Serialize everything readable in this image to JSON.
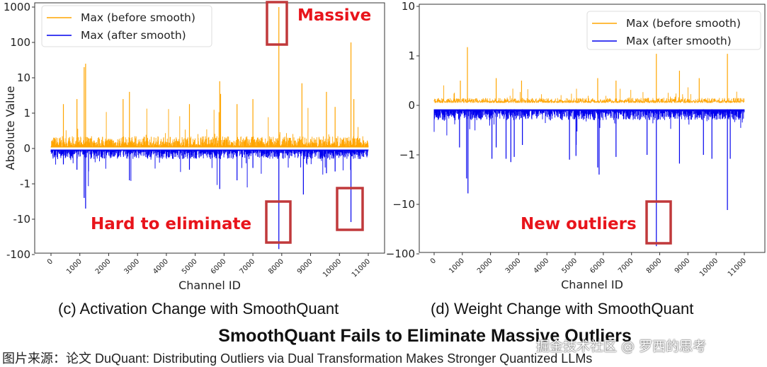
{
  "chart_data": [
    {
      "type": "line",
      "panel": "c",
      "caption": "(c) Activation Change with SmoothQuant",
      "xlabel": "Channel ID",
      "ylabel": "Absolute Value",
      "xlim": [
        0,
        11000
      ],
      "x_ticks": [
        "0",
        "1000",
        "2000",
        "3000",
        "4000",
        "5000",
        "6000",
        "7000",
        "8000",
        "9000",
        "10000",
        "11000"
      ],
      "y_scale": "symlog",
      "y_ticks": [
        "1000",
        "100",
        "10",
        "1",
        "0",
        "-1",
        "-10",
        "-100"
      ],
      "y_tick_values": [
        1000,
        100,
        10,
        1,
        0,
        -1,
        -10,
        -100
      ],
      "ylim": [
        -100,
        1000
      ],
      "legend_position": "top-left",
      "series": [
        {
          "name": "Max (before smooth)",
          "color": "#ffa500",
          "direction": "positive",
          "baseline_range": [
            0.05,
            0.35
          ],
          "peaks": [
            [
              1150,
              20
            ],
            [
              1200,
              25
            ],
            [
              430,
              1.8
            ],
            [
              900,
              2.5
            ],
            [
              2720,
              4
            ],
            [
              2500,
              2.5
            ],
            [
              4800,
              1.8
            ],
            [
              5850,
              8
            ],
            [
              5880,
              3.5
            ],
            [
              6450,
              1.8
            ],
            [
              7000,
              2.5
            ],
            [
              7900,
              1000
            ],
            [
              8700,
              7
            ],
            [
              9550,
              4
            ],
            [
              9850,
              1.5
            ],
            [
              10400,
              100
            ],
            [
              10500,
              2.5
            ]
          ]
        },
        {
          "name": "Max (after smooth)",
          "color": "#0000ee",
          "direction": "negative",
          "baseline_range": [
            0.05,
            0.3
          ],
          "peaks": [
            [
              1150,
              -2.5
            ],
            [
              1200,
              -5
            ],
            [
              900,
              -0.6
            ],
            [
              430,
              -0.45
            ],
            [
              2720,
              -0.9
            ],
            [
              4800,
              -0.6
            ],
            [
              5850,
              -1.4
            ],
            [
              6450,
              -0.9
            ],
            [
              7000,
              -0.55
            ],
            [
              7900,
              -70
            ],
            [
              8750,
              -2
            ],
            [
              9550,
              -0.7
            ],
            [
              9850,
              -0.65
            ],
            [
              10400,
              -12
            ]
          ]
        }
      ],
      "annotations": [
        {
          "text": "Massive",
          "target_channel": 7900
        },
        {
          "text": "Hard to eliminate",
          "target_channels": [
            7900,
            10400
          ]
        }
      ]
    },
    {
      "type": "line",
      "panel": "d",
      "caption": "(d) Weight Change with SmoothQuant",
      "xlabel": "Channel ID",
      "xlim": [
        0,
        11000
      ],
      "x_ticks": [
        "0",
        "1000",
        "2000",
        "3000",
        "4000",
        "5000",
        "6000",
        "7000",
        "8000",
        "9000",
        "10000",
        "11000"
      ],
      "y_scale": "symlog",
      "y_ticks": [
        "10",
        "1",
        "0",
        "−1",
        "−10",
        "−100"
      ],
      "y_tick_values": [
        10,
        1,
        0,
        -1,
        -10,
        -100
      ],
      "ylim": [
        -100,
        10
      ],
      "legend_position": "top-right",
      "series": [
        {
          "name": "Max (before smooth)",
          "color": "#ffa500",
          "direction": "positive",
          "baseline_range": [
            0.05,
            0.15
          ],
          "peaks": [
            [
              1180,
              1.5
            ],
            [
              930,
              0.5
            ],
            [
              2200,
              0.55
            ],
            [
              3100,
              0.5
            ],
            [
              5800,
              0.55
            ],
            [
              6450,
              0.5
            ],
            [
              7880,
              1.1
            ],
            [
              8700,
              0.7
            ],
            [
              9400,
              0.55
            ],
            [
              10400,
              1.1
            ]
          ]
        },
        {
          "name": "Max (after smooth)",
          "color": "#0000ee",
          "direction": "negative",
          "baseline_range": [
            0.1,
            0.3
          ],
          "peaks": [
            [
              900,
              -0.85
            ],
            [
              1150,
              -3
            ],
            [
              1200,
              -6
            ],
            [
              2050,
              -1.2
            ],
            [
              2200,
              -0.85
            ],
            [
              2550,
              -1.2
            ],
            [
              2720,
              -1.4
            ],
            [
              2840,
              -1.1
            ],
            [
              3130,
              -0.8
            ],
            [
              4800,
              -1.25
            ],
            [
              5030,
              -1.05
            ],
            [
              5850,
              -2.5
            ],
            [
              5800,
              -1.8
            ],
            [
              6450,
              -1.1
            ],
            [
              7550,
              -1
            ],
            [
              7880,
              -70
            ],
            [
              8700,
              -1.5
            ],
            [
              9550,
              -1
            ],
            [
              9850,
              -1.2
            ],
            [
              10400,
              -13
            ],
            [
              10500,
              -1.2
            ]
          ]
        }
      ],
      "annotations": [
        {
          "text": "New outliers",
          "target_channel": 7880
        }
      ]
    }
  ],
  "figure_title": "SmoothQuant Fails to Eliminate Massive Outliers",
  "source_line": "图片来源：论文 DuQuant: Distributing Outliers via Dual Transformation Makes Stronger Quantized LLMs",
  "watermark": "掘金技术社区 @ 罗西的思考",
  "colors": {
    "annotation_red": "#e8141b",
    "box_red": "#c0393b"
  }
}
